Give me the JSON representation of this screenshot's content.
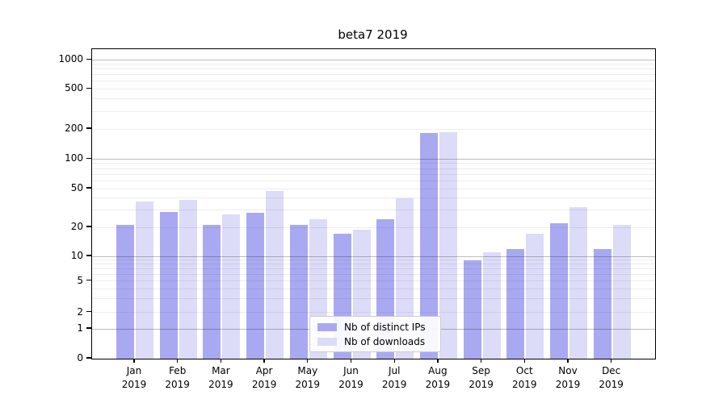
{
  "title": "beta7 2019",
  "chart_data": {
    "type": "bar",
    "title": "beta7 2019",
    "categories": [
      "Jan",
      "Feb",
      "Mar",
      "Apr",
      "May",
      "Jun",
      "Jul",
      "Aug",
      "Sep",
      "Oct",
      "Nov",
      "Dec"
    ],
    "category_year": "2019",
    "series": [
      {
        "name": "Nb of distinct IPs",
        "color": "#a9a9f2",
        "values": [
          21,
          29,
          21,
          28,
          21,
          17,
          24,
          184,
          9,
          12,
          22,
          12
        ]
      },
      {
        "name": "Nb of downloads",
        "color": "#dcdcf8",
        "values": [
          37,
          38,
          27,
          47,
          24,
          19,
          40,
          186,
          11,
          17,
          32,
          21
        ]
      }
    ],
    "xlabel": "",
    "ylabel": "",
    "yscale": "log-like (log above 1, linear 0 to 1)",
    "y_ticks": [
      1000,
      500,
      200,
      100,
      50,
      20,
      10,
      5,
      2,
      1,
      0
    ],
    "y_minor_gridlines": [
      2,
      3,
      4,
      5,
      6,
      7,
      8,
      9,
      20,
      30,
      40,
      50,
      60,
      70,
      80,
      90,
      200,
      300,
      400,
      500,
      600,
      700,
      800,
      900
    ],
    "y_major_gridlines": [
      1,
      10,
      100,
      1000
    ],
    "ylim": [
      0,
      1300
    ],
    "grid": "horizontal, major and minor, visible through translucent bars",
    "legend_position": "lower center inside plot"
  }
}
